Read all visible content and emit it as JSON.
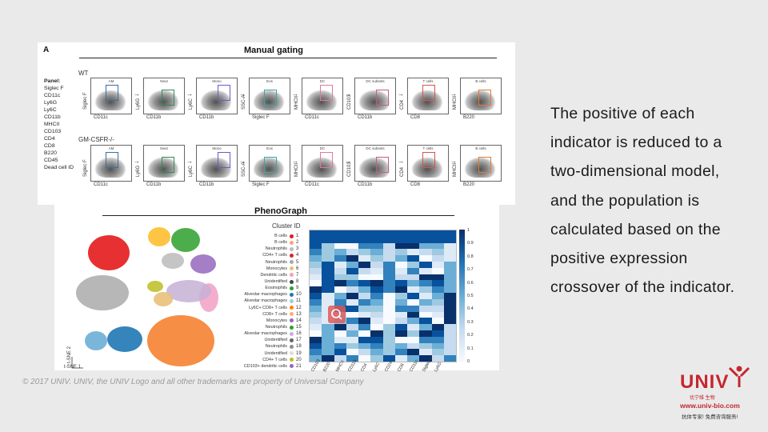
{
  "figure": {
    "panel_label": "A",
    "manual_title": "Manual gating",
    "pheno_title": "PhenoGraph",
    "panel_legend_title": "Panel:",
    "panel_markers": [
      "Siglec F",
      "CD11c",
      "Ly6G",
      "Ly6C",
      "CD11b",
      "MHCII",
      "CD103",
      "CD4",
      "CD8",
      "B220",
      "CD45",
      "Dead cell ID"
    ],
    "row_labels": [
      "WT",
      "GM-CSFR-/-"
    ],
    "gates": [
      {
        "name": "AM",
        "x": "CD11c",
        "y": "Siglec F"
      },
      {
        "name": "Neut",
        "x": "CD11b",
        "y": "Ly6G"
      },
      {
        "name": "Mono",
        "x": "CD11b",
        "y": "Ly6C"
      },
      {
        "name": "Eos",
        "x": "Siglec F",
        "y": "SSC-A"
      },
      {
        "name": "DC",
        "x": "CD11c",
        "y": "MHCII"
      },
      {
        "name": "DC subsets",
        "x": "CD11b",
        "y": "CD103"
      },
      {
        "name": "T cells",
        "x": "CD8",
        "y": "CD4"
      },
      {
        "name": "B cells",
        "x": "B220",
        "y": "MHCII"
      }
    ],
    "cluster_title": "Cluster ID",
    "clusters": [
      {
        "label": "B cells",
        "id": "1",
        "color": "#e41a1c"
      },
      {
        "label": "B cells",
        "id": "2",
        "color": "#f4a582"
      },
      {
        "label": "Neutrophils",
        "id": "3",
        "color": "#bbbbbb"
      },
      {
        "label": "CD4+ T cells",
        "id": "4",
        "color": "#d62728"
      },
      {
        "label": "Neutrophils",
        "id": "5",
        "color": "#aaaaaa"
      },
      {
        "label": "Monocytes",
        "id": "6",
        "color": "#e8c07a"
      },
      {
        "label": "Dendritic cells",
        "id": "7",
        "color": "#f2a0c4"
      },
      {
        "label": "Unidentified",
        "id": "8",
        "color": "#444444"
      },
      {
        "label": "Eosinophils",
        "id": "9",
        "color": "#2ca02c"
      },
      {
        "label": "Alveolar macrophages",
        "id": "10",
        "color": "#1f77b4"
      },
      {
        "label": "Alveolar macrophages",
        "id": "11",
        "color": "#9ecae1"
      },
      {
        "label": "Ly6C+ CD8+ T cells",
        "id": "12",
        "color": "#ff7f0e"
      },
      {
        "label": "CD8+ T cells",
        "id": "13",
        "color": "#fdae6b"
      },
      {
        "label": "Monocytes",
        "id": "14",
        "color": "#9467bd"
      },
      {
        "label": "Neutrophils",
        "id": "15",
        "color": "#2ca02c"
      },
      {
        "label": "Alveolar macrophages",
        "id": "16",
        "color": "#c5b0d5"
      },
      {
        "label": "Unidentified",
        "id": "17",
        "color": "#666666"
      },
      {
        "label": "Neutrophils",
        "id": "18",
        "color": "#8c8c8c"
      },
      {
        "label": "Unidentified",
        "id": "19",
        "color": "#dddddd"
      },
      {
        "label": "CD4+ T cells",
        "id": "20",
        "color": "#bcbd22"
      },
      {
        "label": "CD103+ dendritic cells",
        "id": "21",
        "color": "#9467bd"
      }
    ],
    "heatmap_columns": [
      "CD103",
      "B220",
      "MHCII",
      "CD11b",
      "CD4",
      "Ly6C",
      "CD24",
      "CD8",
      "CD11c",
      "Siglec F",
      "Ly6G",
      ""
    ],
    "colorbar_ticks": [
      "1",
      "0.9",
      "0.8",
      "0.7",
      "0.6",
      "0.5",
      "0.4",
      "0.3",
      "0.2",
      "0.1",
      "0"
    ],
    "tsne_x": "t-SNE 1",
    "tsne_y": "t-SNE 2"
  },
  "body_text": "The positive of each indicator is reduced to a two-dimensional model, and the population is calculated based on the positive expression crossover of the indicator.",
  "footer": "© 2017 UNIV. UNIV, the UNIV Logo and all other trademarks are property of Universal Company",
  "logo": {
    "word": "UNIV",
    "cn": "优宁维 生物",
    "url": "www.univ-bio.com",
    "tagline": "抗体专家! 免费咨询服务!"
  }
}
